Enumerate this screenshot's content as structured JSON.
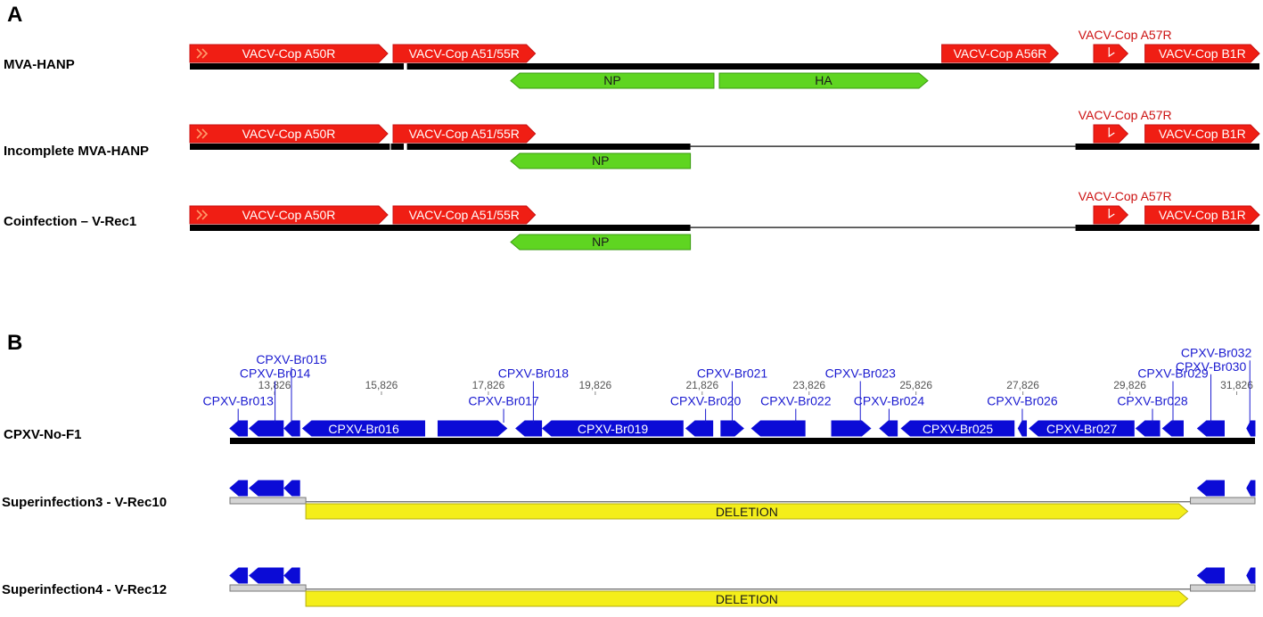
{
  "panel_a": {
    "label": "A",
    "tracks": [
      {
        "name": "MVA-HANP",
        "backbone": [
          {
            "from": 0,
            "to": 0.189,
            "style": "thick"
          },
          {
            "from": 0.187,
            "to": 0.2,
            "style": "thick"
          },
          {
            "from": 0.203,
            "to": 1,
            "style": "thick"
          }
        ],
        "top_features": [
          {
            "label": "VACV-Cop A50R",
            "from": 0,
            "to": 0.185,
            "color": "red",
            "dir": "right",
            "chevron": true
          },
          {
            "label": "VACV-Cop A51/55R",
            "from": 0.19,
            "to": 0.323,
            "color": "red",
            "dir": "right"
          },
          {
            "label": "VACV-Cop A56R",
            "from": 0.703,
            "to": 0.812,
            "color": "red",
            "dir": "right"
          },
          {
            "label": "VACV-Cop A57R",
            "from": 0.845,
            "to": 0.877,
            "color": "red",
            "dir": "right",
            "callout": true,
            "notch": true
          },
          {
            "label": "VACV-Cop B1R",
            "from": 0.893,
            "to": 1,
            "color": "red",
            "dir": "right"
          }
        ],
        "bottom_features": [
          {
            "label": "NP",
            "from": 0.3,
            "to": 0.49,
            "color": "green",
            "dir": "left"
          },
          {
            "label": "HA",
            "from": 0.495,
            "to": 0.69,
            "color": "green",
            "dir": "right"
          }
        ]
      },
      {
        "name": "Incomplete MVA-HANP",
        "backbone": [
          {
            "from": 0,
            "to": 0.187,
            "style": "thick"
          },
          {
            "from": 0.188,
            "to": 0.2,
            "style": "thick"
          },
          {
            "from": 0.203,
            "to": 0.468,
            "style": "thick"
          },
          {
            "from": 0.468,
            "to": 0.828,
            "style": "thin"
          },
          {
            "from": 0.828,
            "to": 1,
            "style": "thick"
          }
        ],
        "top_features": [
          {
            "label": "VACV-Cop A50R",
            "from": 0,
            "to": 0.185,
            "color": "red",
            "dir": "right",
            "chevron": true
          },
          {
            "label": "VACV-Cop A51/55R",
            "from": 0.19,
            "to": 0.323,
            "color": "red",
            "dir": "right"
          },
          {
            "label": "VACV-Cop A57R",
            "from": 0.845,
            "to": 0.877,
            "color": "red",
            "dir": "right",
            "callout": true,
            "notch": true
          },
          {
            "label": "VACV-Cop B1R",
            "from": 0.893,
            "to": 1,
            "color": "red",
            "dir": "right"
          }
        ],
        "bottom_features": [
          {
            "label": "NP",
            "from": 0.3,
            "to": 0.468,
            "color": "green",
            "dir": "left"
          }
        ]
      },
      {
        "name": "Coinfection – V-Rec1",
        "backbone": [
          {
            "from": 0,
            "to": 0.468,
            "style": "thick"
          },
          {
            "from": 0.468,
            "to": 0.828,
            "style": "thin"
          },
          {
            "from": 0.828,
            "to": 1,
            "style": "thick"
          }
        ],
        "top_features": [
          {
            "label": "VACV-Cop A50R",
            "from": 0,
            "to": 0.185,
            "color": "red",
            "dir": "right",
            "chevron": true
          },
          {
            "label": "VACV-Cop A51/55R",
            "from": 0.19,
            "to": 0.323,
            "color": "red",
            "dir": "right"
          },
          {
            "label": "VACV-Cop A57R",
            "from": 0.845,
            "to": 0.877,
            "color": "red",
            "dir": "right",
            "callout": true,
            "notch": true
          },
          {
            "label": "VACV-Cop B1R",
            "from": 0.893,
            "to": 1,
            "color": "red",
            "dir": "right"
          }
        ],
        "bottom_features": [
          {
            "label": "NP",
            "from": 0.3,
            "to": 0.468,
            "color": "green",
            "dir": "left"
          }
        ]
      }
    ]
  },
  "panel_b": {
    "label": "B",
    "ruler_ticks": [
      "13,826",
      "15,826",
      "17,826",
      "19,826",
      "21,826",
      "23,826",
      "25,826",
      "27,826",
      "29,826",
      "31,826"
    ],
    "tracks": [
      {
        "name": "CPXV-No-F1",
        "ruler": true,
        "genes": [
          {
            "from": 0.0,
            "to": 0.017,
            "dir": "left"
          },
          {
            "from": 0.019,
            "to": 0.052,
            "dir": "left"
          },
          {
            "from": 0.053,
            "to": 0.068,
            "dir": "left"
          },
          {
            "from": 0.071,
            "to": 0.19,
            "dir": "left",
            "label": "CPXV-Br016"
          },
          {
            "from": 0.203,
            "to": 0.27,
            "dir": "right"
          },
          {
            "from": 0.279,
            "to": 0.304,
            "dir": "left"
          },
          {
            "from": 0.305,
            "to": 0.442,
            "dir": "left",
            "label": "CPXV-Br019"
          },
          {
            "from": 0.445,
            "to": 0.471,
            "dir": "left"
          },
          {
            "from": 0.479,
            "to": 0.501,
            "dir": "right"
          },
          {
            "from": 0.509,
            "to": 0.561,
            "dir": "left"
          },
          {
            "from": 0.587,
            "to": 0.625,
            "dir": "right"
          },
          {
            "from": 0.634,
            "to": 0.651,
            "dir": "left"
          },
          {
            "from": 0.655,
            "to": 0.765,
            "dir": "left",
            "label": "CPXV-Br025"
          },
          {
            "from": 0.769,
            "to": 0.777,
            "dir": "left"
          },
          {
            "from": 0.78,
            "to": 0.882,
            "dir": "left",
            "label": "CPXV-Br027"
          },
          {
            "from": 0.884,
            "to": 0.907,
            "dir": "left"
          },
          {
            "from": 0.91,
            "to": 0.93,
            "dir": "left"
          },
          {
            "from": 0.944,
            "to": 0.97,
            "dir": "left"
          },
          {
            "from": 0.992,
            "to": 1.0,
            "dir": "left"
          }
        ],
        "callouts": [
          {
            "label": "CPXV-Br015",
            "x": 0.06,
            "row": 0
          },
          {
            "label": "CPXV-Br014",
            "x": 0.044,
            "row": 1
          },
          {
            "label": "CPXV-Br013",
            "x": 0.008,
            "row": 3
          },
          {
            "label": "CPXV-Br017",
            "x": 0.267,
            "row": 3
          },
          {
            "label": "CPXV-Br018",
            "x": 0.296,
            "row": 1
          },
          {
            "label": "CPXV-Br020",
            "x": 0.464,
            "row": 3
          },
          {
            "label": "CPXV-Br021",
            "x": 0.49,
            "row": 1
          },
          {
            "label": "CPXV-Br022",
            "x": 0.552,
            "row": 3
          },
          {
            "label": "CPXV-Br023",
            "x": 0.615,
            "row": 1
          },
          {
            "label": "CPXV-Br024",
            "x": 0.643,
            "row": 3
          },
          {
            "label": "CPXV-Br026",
            "x": 0.773,
            "row": 3
          },
          {
            "label": "CPXV-Br028",
            "x": 0.9,
            "row": 3
          },
          {
            "label": "CPXV-Br029",
            "x": 0.92,
            "row": 1
          },
          {
            "label": "CPXV-Br030",
            "x": 0.957,
            "row": 0.5
          },
          {
            "label": "CPXV-Br032",
            "x": 0.995,
            "row": -0.5
          }
        ]
      },
      {
        "name": "Superinfection3 -  V-Rec10",
        "genes_left": [
          {
            "from": 0.0,
            "to": 0.017,
            "dir": "left"
          },
          {
            "from": 0.019,
            "to": 0.052,
            "dir": "left"
          },
          {
            "from": 0.053,
            "to": 0.068,
            "dir": "left"
          }
        ],
        "genes_right": [
          {
            "from": 0.944,
            "to": 0.97,
            "dir": "left"
          },
          {
            "from": 0.992,
            "to": 1.0,
            "dir": "left"
          }
        ],
        "deletion_label": "DELETION"
      },
      {
        "name": "Superinfection4 -  V-Rec12",
        "genes_left": [
          {
            "from": 0.0,
            "to": 0.017,
            "dir": "left"
          },
          {
            "from": 0.019,
            "to": 0.052,
            "dir": "left"
          },
          {
            "from": 0.053,
            "to": 0.068,
            "dir": "left"
          }
        ],
        "genes_right": [
          {
            "from": 0.944,
            "to": 0.97,
            "dir": "left"
          },
          {
            "from": 0.992,
            "to": 1.0,
            "dir": "left"
          }
        ],
        "deletion_label": "DELETION"
      }
    ]
  },
  "colors": {
    "red": "#f01e14",
    "red_stroke": "#c81010",
    "red_text": "#cc1111",
    "green": "#5fd521",
    "green_stroke": "#3a9a10",
    "blue": "#0b0bd6",
    "blue_text": "#1a1ad0",
    "yellow": "#f4ee1a",
    "yellow_stroke": "#b5ad10",
    "ruler_text": "#555555"
  }
}
